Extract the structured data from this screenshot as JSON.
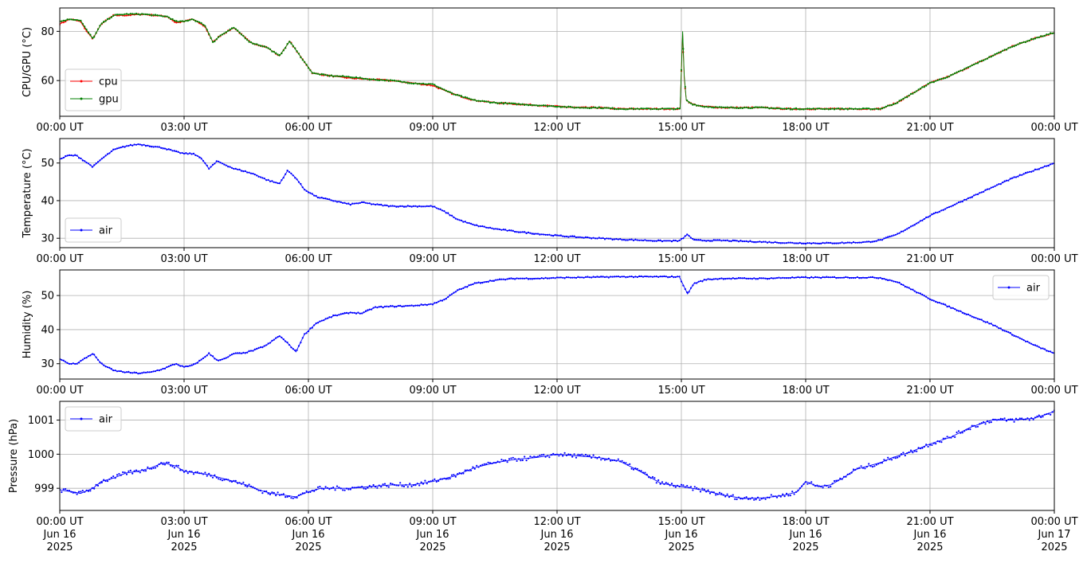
{
  "colors": {
    "cpu": "#ff0000",
    "gpu": "#008000",
    "air": "#0000ff",
    "grid": "#b0b0b0"
  },
  "chart_data": [
    {
      "type": "line",
      "ylabel": "CPU/GPU (°C)",
      "ylim": [
        45.5,
        89.5
      ],
      "yticks": [
        60,
        80
      ],
      "x_domain_hours": [
        0,
        24
      ],
      "grid": true,
      "legend": "bottom-left",
      "xtick_labels": [
        "00:00 UT",
        "03:00 UT",
        "06:00 UT",
        "09:00 UT",
        "12:00 UT",
        "15:00 UT",
        "18:00 UT",
        "21:00 UT",
        "00:00 UT"
      ],
      "series": [
        {
          "name": "cpu",
          "color": "#ff0000",
          "x": [
            0,
            0.25,
            0.5,
            0.65,
            0.8,
            1.0,
            1.3,
            1.6,
            2.0,
            2.3,
            2.6,
            2.8,
            3.0,
            3.2,
            3.5,
            3.7,
            3.85,
            4.2,
            4.6,
            5.0,
            5.3,
            5.55,
            5.8,
            6.1,
            6.5,
            7.0,
            7.5,
            8.0,
            8.5,
            9.0,
            9.5,
            10.0,
            10.5,
            11.0,
            11.5,
            12.0,
            12.5,
            13.0,
            13.5,
            14.0,
            14.5,
            14.97,
            15.03,
            15.07,
            15.12,
            15.25,
            15.5,
            16.0,
            16.5,
            17.0,
            17.5,
            18.0,
            18.5,
            19.0,
            19.5,
            19.8,
            20.2,
            20.6,
            21.0,
            21.5,
            22.0,
            22.5,
            23.0,
            23.5,
            24.0
          ],
          "y": [
            83,
            85,
            84,
            80,
            77,
            83,
            86.5,
            86.5,
            87,
            86.5,
            86,
            83.5,
            84,
            85,
            82,
            75.5,
            78,
            81.5,
            75.5,
            73.5,
            70,
            76,
            70,
            63,
            62,
            61,
            60.5,
            60,
            59,
            58,
            54.5,
            52,
            51,
            50.5,
            50,
            49.5,
            49,
            49,
            48.5,
            48.5,
            48.5,
            48.5,
            79,
            61,
            52,
            50.5,
            49.5,
            49,
            49,
            49,
            48.5,
            48.5,
            48.5,
            48.5,
            48.5,
            48.5,
            51,
            55,
            59,
            62,
            66,
            70,
            74,
            77,
            79.5
          ]
        },
        {
          "name": "gpu",
          "color": "#008000",
          "x": [
            0,
            0.25,
            0.5,
            0.65,
            0.8,
            1.0,
            1.3,
            1.6,
            2.0,
            2.3,
            2.6,
            2.8,
            3.0,
            3.2,
            3.5,
            3.7,
            3.85,
            4.2,
            4.6,
            5.0,
            5.3,
            5.55,
            5.8,
            6.1,
            6.5,
            7.0,
            7.5,
            8.0,
            8.5,
            9.0,
            9.5,
            10.0,
            10.5,
            11.0,
            11.5,
            12.0,
            12.5,
            13.0,
            13.5,
            14.0,
            14.5,
            14.97,
            15.03,
            15.07,
            15.12,
            15.25,
            15.5,
            16.0,
            16.5,
            17.0,
            17.5,
            18.0,
            18.5,
            19.0,
            19.5,
            19.8,
            20.2,
            20.6,
            21.0,
            21.5,
            22.0,
            22.5,
            23.0,
            23.5,
            24.0
          ],
          "y": [
            84,
            85,
            84.5,
            80.5,
            77,
            83,
            86.5,
            87,
            87,
            86.5,
            86,
            84,
            84,
            85,
            82.5,
            75.5,
            78,
            81.5,
            75.5,
            73.5,
            70,
            76,
            70,
            63,
            62,
            61.5,
            60.5,
            60,
            59,
            58.5,
            54.5,
            52,
            51,
            50.5,
            50,
            49.5,
            49,
            49,
            48.5,
            48.5,
            48.5,
            48.5,
            80,
            62,
            52,
            50.5,
            49.5,
            49,
            49,
            49,
            48.5,
            48.5,
            48.5,
            48.5,
            48.5,
            48.5,
            51,
            55,
            59,
            62,
            66,
            70,
            74,
            77,
            79.5
          ]
        }
      ]
    },
    {
      "type": "line",
      "ylabel": "Temperature (°C)",
      "ylim": [
        27.5,
        56.5
      ],
      "yticks": [
        30,
        40,
        50
      ],
      "x_domain_hours": [
        0,
        24
      ],
      "grid": true,
      "legend": "bottom-left",
      "xtick_labels": [
        "00:00 UT",
        "03:00 UT",
        "06:00 UT",
        "09:00 UT",
        "12:00 UT",
        "15:00 UT",
        "18:00 UT",
        "21:00 UT",
        "00:00 UT"
      ],
      "series": [
        {
          "name": "air",
          "color": "#0000ff",
          "x": [
            0,
            0.2,
            0.4,
            0.6,
            0.8,
            1.0,
            1.3,
            1.6,
            1.9,
            2.2,
            2.5,
            2.8,
            3.0,
            3.2,
            3.4,
            3.6,
            3.8,
            4.0,
            4.2,
            4.4,
            4.7,
            5.0,
            5.3,
            5.5,
            5.7,
            5.9,
            6.2,
            6.6,
            7.0,
            7.3,
            7.6,
            8.0,
            8.5,
            9.0,
            9.3,
            9.6,
            10.0,
            10.5,
            11.0,
            11.5,
            12.0,
            12.5,
            13.0,
            13.5,
            14.0,
            14.5,
            14.95,
            15.15,
            15.3,
            15.6,
            16.0,
            16.5,
            17.0,
            17.5,
            18.0,
            18.5,
            19.0,
            19.5,
            19.8,
            20.2,
            20.6,
            21.0,
            21.5,
            22.0,
            22.5,
            23.0,
            23.5,
            24.0
          ],
          "y": [
            51,
            52,
            52,
            50.5,
            49,
            51,
            53.5,
            54.5,
            55,
            54.5,
            54,
            53,
            52.5,
            52.5,
            51.5,
            48.5,
            50.5,
            49.5,
            48.5,
            48,
            47,
            45.5,
            44.5,
            48,
            46,
            43,
            41,
            40,
            39,
            39.5,
            39,
            38.5,
            38.5,
            38.5,
            37,
            35,
            33.5,
            32.5,
            31.8,
            31.2,
            30.7,
            30.3,
            30,
            29.7,
            29.5,
            29.3,
            29.3,
            31,
            29.5,
            29.4,
            29.4,
            29.2,
            29,
            28.8,
            28.7,
            28.7,
            28.8,
            29,
            29.5,
            31,
            33.5,
            36,
            38.5,
            41,
            43.5,
            46,
            48,
            50
          ]
        }
      ]
    },
    {
      "type": "line",
      "ylabel": "Humidity (%)",
      "ylim": [
        25.5,
        57.5
      ],
      "yticks": [
        30,
        40,
        50
      ],
      "x_domain_hours": [
        0,
        24
      ],
      "grid": true,
      "legend": "top-right",
      "xtick_labels": [
        "00:00 UT",
        "03:00 UT",
        "06:00 UT",
        "09:00 UT",
        "12:00 UT",
        "15:00 UT",
        "18:00 UT",
        "21:00 UT",
        "00:00 UT"
      ],
      "series": [
        {
          "name": "air",
          "color": "#0000ff",
          "x": [
            0,
            0.2,
            0.4,
            0.6,
            0.8,
            1.0,
            1.3,
            1.6,
            1.9,
            2.2,
            2.5,
            2.8,
            3.0,
            3.2,
            3.4,
            3.6,
            3.8,
            4.0,
            4.2,
            4.4,
            4.7,
            5.0,
            5.3,
            5.5,
            5.7,
            5.9,
            6.2,
            6.6,
            7.0,
            7.3,
            7.6,
            8.0,
            8.5,
            9.0,
            9.3,
            9.6,
            10.0,
            10.5,
            11.0,
            11.5,
            12.0,
            12.5,
            13.0,
            13.5,
            14.0,
            14.5,
            14.95,
            15.15,
            15.3,
            15.6,
            16.0,
            16.5,
            17.0,
            17.5,
            18.0,
            18.5,
            19.0,
            19.5,
            19.8,
            20.2,
            20.6,
            21.0,
            21.5,
            22.0,
            22.5,
            23.0,
            23.5,
            24.0
          ],
          "y": [
            31.5,
            30,
            30,
            31.5,
            33,
            30,
            28,
            27.5,
            27.2,
            27.5,
            28.5,
            30,
            29,
            29.5,
            31,
            33,
            31,
            31.5,
            33,
            33,
            34,
            35.5,
            38.2,
            36,
            33.5,
            38.5,
            42,
            44,
            45,
            44.8,
            46.5,
            46.8,
            47,
            47.5,
            49,
            51.5,
            53.5,
            54.5,
            55,
            55,
            55.2,
            55.3,
            55.4,
            55.5,
            55.5,
            55.5,
            55.5,
            50.5,
            53.5,
            54.7,
            55,
            55,
            55,
            55.2,
            55.3,
            55.3,
            55.3,
            55.3,
            55.2,
            54,
            51.5,
            49,
            46.5,
            44,
            41.5,
            38.5,
            35.5,
            33
          ]
        }
      ]
    },
    {
      "type": "line",
      "ylabel": "Pressure (hPa)",
      "ylim": [
        998.35,
        1001.55
      ],
      "yticks": [
        999,
        1000,
        1001
      ],
      "x_domain_hours": [
        0,
        24
      ],
      "grid": true,
      "legend": "top-left",
      "xtick_labels": [
        "00:00 UT\nJun 16\n2025",
        "03:00 UT\nJun 16\n2025",
        "06:00 UT\nJun 16\n2025",
        "09:00 UT\nJun 16\n2025",
        "12:00 UT\nJun 16\n2025",
        "15:00 UT\nJun 16\n2025",
        "18:00 UT\nJun 16\n2025",
        "21:00 UT\nJun 16\n2025",
        "00:00 UT\nJun 17\n2025"
      ],
      "series": [
        {
          "name": "air",
          "color": "#0000ff",
          "x": [
            0,
            0.3,
            0.5,
            0.8,
            1.0,
            1.3,
            1.6,
            1.9,
            2.2,
            2.5,
            2.8,
            3.0,
            3.3,
            3.6,
            3.9,
            4.2,
            4.5,
            4.8,
            5.1,
            5.4,
            5.7,
            6.0,
            6.3,
            6.6,
            7.0,
            7.5,
            8.0,
            8.5,
            9.0,
            9.5,
            10.0,
            10.5,
            11.0,
            11.5,
            12.0,
            12.5,
            13.0,
            13.5,
            14.0,
            14.5,
            15.0,
            15.5,
            16.0,
            16.5,
            17.0,
            17.5,
            17.8,
            18.0,
            18.3,
            18.6,
            18.9,
            19.2,
            19.5,
            19.8,
            20.1,
            20.5,
            21.0,
            21.5,
            22.0,
            22.5,
            23.0,
            23.5,
            24.0
          ],
          "y": [
            998.95,
            998.9,
            998.85,
            999.0,
            999.2,
            999.3,
            999.45,
            999.5,
            999.6,
            999.75,
            999.65,
            999.5,
            999.45,
            999.4,
            999.3,
            999.2,
            999.1,
            998.95,
            998.85,
            998.8,
            998.75,
            998.9,
            999.0,
            999.0,
            999.0,
            999.05,
            999.1,
            999.1,
            999.2,
            999.35,
            999.6,
            999.75,
            999.85,
            999.9,
            1000.0,
            999.95,
            999.9,
            999.8,
            999.5,
            999.15,
            999.05,
            998.95,
            998.8,
            998.7,
            998.72,
            998.8,
            998.9,
            999.2,
            999.05,
            999.1,
            999.3,
            999.55,
            999.65,
            999.75,
            999.9,
            1000.05,
            1000.3,
            1000.5,
            1000.8,
            1001.0,
            1001.0,
            1001.05,
            1001.25
          ]
        }
      ]
    }
  ]
}
